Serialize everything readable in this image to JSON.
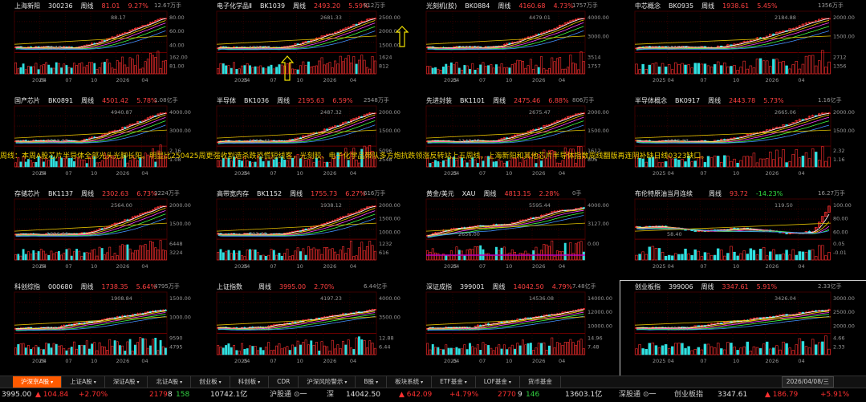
{
  "panels": [
    {
      "name": "上海新阳",
      "code": "300236",
      "period": "周线",
      "price": "81.01",
      "pct": "9.27%",
      "vol": "12.67万手",
      "high": "88.17",
      "low": "29.18",
      "axis": [
        "80.00",
        "60.00",
        "40.00",
        "162.00",
        "81.00"
      ],
      "xticks": [
        "2025",
        "04",
        "07",
        "10",
        "2026",
        "04"
      ],
      "shape": "rise"
    },
    {
      "name": "电子化学品Ⅱ",
      "code": "BK1039",
      "period": "周线",
      "price": "2493.20",
      "pct": "5.59%",
      "vol": "812万手",
      "high": "2681.33",
      "low": "1329.19",
      "axis": [
        "2500.00",
        "2000.00",
        "1500.00",
        "1624",
        "812"
      ],
      "xticks": [
        "2025",
        "04",
        "07",
        "10",
        "2026",
        "04"
      ],
      "shape": "rise"
    },
    {
      "name": "光刻机(胶)",
      "code": "BK0884",
      "period": "周线",
      "price": "4160.68",
      "pct": "4.73%",
      "vol": "1757万手",
      "high": "4479.01",
      "low": "2098.83",
      "axis": [
        "4000.00",
        "3000.00",
        "3514",
        "1757"
      ],
      "xticks": [
        "2025",
        "04",
        "07",
        "10",
        "2026",
        "04"
      ],
      "shape": "rise"
    },
    {
      "name": "中芯概念",
      "code": "BK0935",
      "period": "周线",
      "price": "1938.61",
      "pct": "5.45%",
      "vol": "1356万手",
      "high": "2184.88",
      "low": "1017.07",
      "axis": [
        "2000.00",
        "1500.00",
        "2712",
        "1356"
      ],
      "xticks": [
        "2025",
        "04",
        "07",
        "10",
        "2026",
        "04"
      ],
      "shape": "rise"
    },
    {
      "name": "国产芯片",
      "code": "BK0891",
      "period": "周线",
      "price": "4501.42",
      "pct": "5.78%",
      "vol": "1.08亿手",
      "high": "4940.87",
      "low": "2323.87",
      "axis": [
        "4000.00",
        "3000.00",
        "2.16",
        "1.08"
      ],
      "xticks": [
        "2025",
        "04",
        "07",
        "10",
        "2026",
        "04"
      ],
      "shape": "rise"
    },
    {
      "name": "半导体",
      "code": "BK1036",
      "period": "周线",
      "price": "2195.63",
      "pct": "6.59%",
      "vol": "2548万手",
      "high": "2487.32",
      "low": "1112.41",
      "axis": [
        "2000.00",
        "1500.00",
        "5096",
        "2548"
      ],
      "xticks": [
        "2025",
        "04",
        "07",
        "10",
        "2026",
        "04"
      ],
      "shape": "rise"
    },
    {
      "name": "先进封装",
      "code": "BK1101",
      "period": "周线",
      "price": "2475.46",
      "pct": "6.88%",
      "vol": "806万手",
      "high": "2675.47",
      "low": "1142.08",
      "axis": [
        "2000.00",
        "1500.00",
        "1612",
        "806"
      ],
      "xticks": [
        "2025",
        "04",
        "07",
        "10",
        "2026",
        "04"
      ],
      "shape": "rise"
    },
    {
      "name": "半导体概念",
      "code": "BK0917",
      "period": "周线",
      "price": "2443.78",
      "pct": "5.73%",
      "vol": "1.16亿手",
      "high": "2665.06",
      "low": "1205.37",
      "axis": [
        "2000.00",
        "1500.00",
        "2.32",
        "1.16"
      ],
      "xticks": [
        "2025",
        "04",
        "07",
        "10",
        "2026",
        "04"
      ],
      "shape": "rise"
    },
    {
      "name": "存储芯片",
      "code": "BK1137",
      "period": "周线",
      "price": "2302.63",
      "pct": "6.73%",
      "vol": "3224万手",
      "high": "2564.00",
      "low": "1026.66",
      "axis": [
        "2000.00",
        "1500.00",
        "6448",
        "3224"
      ],
      "xticks": [
        "2025",
        "04",
        "07",
        "10",
        "2026",
        "04"
      ],
      "shape": "rise"
    },
    {
      "name": "高带宽内存",
      "code": "BK1152",
      "period": "周线",
      "price": "1755.73",
      "pct": "6.27%",
      "vol": "616万手",
      "high": "1938.12",
      "low": "723.69",
      "axis": [
        "2000.00",
        "1500.00",
        "1000.00",
        "1232",
        "616"
      ],
      "xticks": [
        "2025",
        "04",
        "07",
        "10",
        "2026",
        "04"
      ],
      "shape": "rise"
    },
    {
      "name": "黄金/美元",
      "code": "XAU",
      "period": "周线",
      "price": "4813.15",
      "pct": "2.28%",
      "vol": "0手",
      "high": "5595.44",
      "low": "2656.00",
      "axis": [
        "4000.00",
        "3127.00",
        "0.00"
      ],
      "xticks": [
        "2025",
        "04",
        "07",
        "10",
        "2026",
        "04"
      ],
      "shape": "gold"
    },
    {
      "name": "布伦特原油当月连续",
      "code": "",
      "period": "周线",
      "price": "93.72",
      "pct": "-14.23%",
      "vol": "16.27万手",
      "high": "119.50",
      "low": "58.40",
      "axis": [
        "100.00",
        "80.00",
        "60.00",
        "0.05",
        "-0.01"
      ],
      "xticks": [
        "2025",
        "04",
        "07",
        "10",
        "2026",
        "04"
      ],
      "shape": "oil"
    },
    {
      "name": "科创综指",
      "code": "000680",
      "period": "周线",
      "price": "1738.35",
      "pct": "5.64%",
      "vol": "4795万手",
      "high": "1908.84",
      "low": "994.16",
      "axis": [
        "1500.00",
        "1000.00",
        "9590",
        "4795"
      ],
      "xticks": [
        "2025",
        "04",
        "07",
        "10",
        "2026",
        "04"
      ],
      "shape": "index"
    },
    {
      "name": "上证指数",
      "code": "",
      "period": "周线",
      "price": "3995.00",
      "pct": "2.70%",
      "vol": "6.44亿手",
      "high": "4197.23",
      "low": "3040.69",
      "axis": [
        "4000.00",
        "3500.00",
        "12.88",
        "6.44"
      ],
      "xticks": [
        "2025",
        "04",
        "07",
        "10",
        "2026",
        "04"
      ],
      "shape": "index"
    },
    {
      "name": "深证成指",
      "code": "399001",
      "period": "周线",
      "price": "14042.50",
      "pct": "4.79%",
      "vol": "7.48亿手",
      "high": "14536.08",
      "low": "9119.60",
      "axis": [
        "14000.00",
        "12000.00",
        "10000.00",
        "14.96",
        "7.48"
      ],
      "xticks": [
        "2025",
        "04",
        "07",
        "10",
        "2026",
        "04"
      ],
      "shape": "index"
    },
    {
      "name": "创业板指",
      "code": "399006",
      "period": "周线",
      "price": "3347.61",
      "pct": "5.91%",
      "vol": "2.33亿手",
      "high": "3426.04",
      "low": "1756.64",
      "axis": [
        "3000.00",
        "2500.00",
        "2000.00",
        "4.66",
        "2.33"
      ],
      "xticks": [
        "2025",
        "04",
        "07",
        "10",
        "2026",
        "04"
      ],
      "shape": "index"
    }
  ],
  "annotation": "周线：本周A股芯片半导体全部光头光脚长阳。明显比250425周更强收割造杀跌恐慌短线客，光刻胶、电子化学品带队多方炮抗跌领涨反转站上五周线，上海新阳和其他芯片半导体指数周线翻版再连阴补缺日线0323缺口。",
  "tabs": [
    {
      "label": "沪深京A股",
      "active": true,
      "caret": true
    },
    {
      "label": "上证A股",
      "caret": true
    },
    {
      "label": "深证A股",
      "caret": true
    },
    {
      "label": "北证A股",
      "caret": true
    },
    {
      "label": "创业板",
      "caret": true
    },
    {
      "label": "科创板",
      "caret": true
    },
    {
      "label": "CDR"
    },
    {
      "label": "沪深风险警示",
      "caret": true
    },
    {
      "label": "B股",
      "caret": true
    },
    {
      "label": "板块系统",
      "caret": true
    },
    {
      "label": "ETF基金",
      "caret": true
    },
    {
      "label": "LOF基金",
      "caret": true
    },
    {
      "label": "货币基金"
    }
  ],
  "date": "2026/04/08/三",
  "status": {
    "sh_price": "3995.00",
    "sh_chg": "▲ 104.84",
    "sh_pct": "+2.70%",
    "sh_up": "2179",
    "sh_sep": "8",
    "sh_dn": "158",
    "sh_amt": "10742.1亿",
    "hgt_label": "沪股通",
    "hgt_icon": "⊙一",
    "sz_label": "深",
    "sz_price": "14042.50",
    "sz_chg": "▲ 642.09",
    "sz_pct": "+4.79%",
    "sz_up": "2770",
    "sz_sep": "9",
    "sz_dn": "146",
    "sz_amt": "13603.1亿",
    "sgt_label": "深股通",
    "sgt_icon": "⊙一",
    "cyb_label": "创业板指",
    "cyb_price": "3347.61",
    "cyb_chg": "▲ 186.79",
    "cyb_pct": "+5.91%"
  }
}
